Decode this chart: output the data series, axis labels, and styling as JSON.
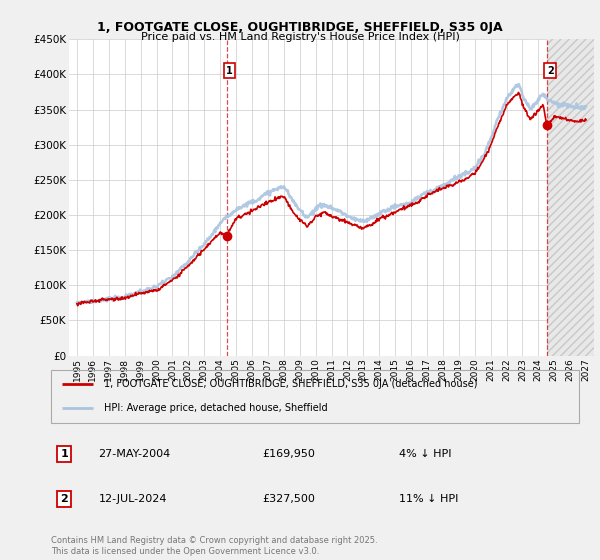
{
  "title": "1, FOOTGATE CLOSE, OUGHTIBRIDGE, SHEFFIELD, S35 0JA",
  "subtitle": "Price paid vs. HM Land Registry's House Price Index (HPI)",
  "ylabel_ticks": [
    "£0",
    "£50K",
    "£100K",
    "£150K",
    "£200K",
    "£250K",
    "£300K",
    "£350K",
    "£400K",
    "£450K"
  ],
  "ytick_values": [
    0,
    50000,
    100000,
    150000,
    200000,
    250000,
    300000,
    350000,
    400000,
    450000
  ],
  "ylim": [
    0,
    450000
  ],
  "xlim_start": 1994.5,
  "xlim_end": 2027.5,
  "xtick_years": [
    1995,
    1996,
    1997,
    1998,
    1999,
    2000,
    2001,
    2002,
    2003,
    2004,
    2005,
    2006,
    2007,
    2008,
    2009,
    2010,
    2011,
    2012,
    2013,
    2014,
    2015,
    2016,
    2017,
    2018,
    2019,
    2020,
    2021,
    2022,
    2023,
    2024,
    2025,
    2026,
    2027
  ],
  "bg_color": "#f0f0f0",
  "plot_bg_color": "#ffffff",
  "grid_color": "#cccccc",
  "hpi_color": "#aac4e0",
  "property_color": "#cc0000",
  "point1_year": 2004.4,
  "point1_value": 169950,
  "point2_year": 2024.55,
  "point2_value": 327500,
  "point1_label": "1",
  "point2_label": "2",
  "legend_property": "1, FOOTGATE CLOSE, OUGHTIBRIDGE, SHEFFIELD, S35 0JA (detached house)",
  "legend_hpi": "HPI: Average price, detached house, Sheffield",
  "transaction1_num": "1",
  "transaction1_date": "27-MAY-2004",
  "transaction1_price": "£169,950",
  "transaction1_hpi": "4% ↓ HPI",
  "transaction2_num": "2",
  "transaction2_date": "12-JUL-2024",
  "transaction2_price": "£327,500",
  "transaction2_hpi": "11% ↓ HPI",
  "copyright_text": "Contains HM Land Registry data © Crown copyright and database right 2025.\nThis data is licensed under the Open Government Licence v3.0.",
  "vline_color": "#cc0000",
  "hatch_color": "#d0d0d0"
}
